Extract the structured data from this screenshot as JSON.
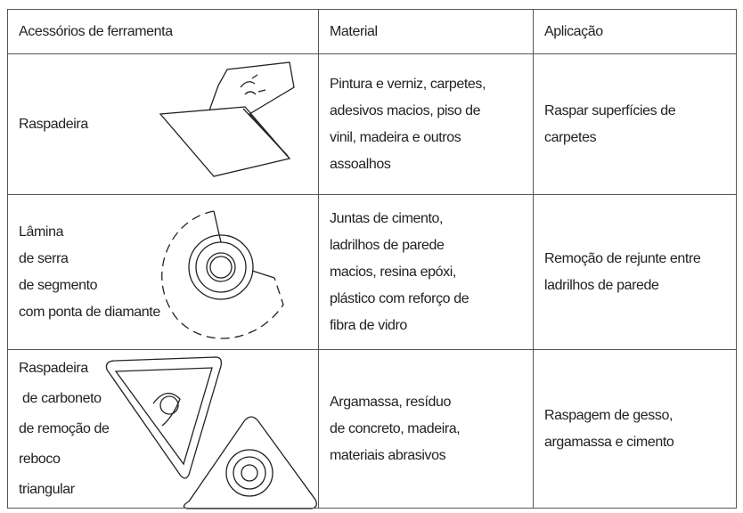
{
  "table": {
    "header": [
      "Acessórios de ferramenta",
      "Material",
      "Aplicação"
    ],
    "rows": [
      [
        [
          "Raspadeira"
        ],
        [
          "Pintura e verniz, carpetes,",
          "adesivos macios, piso de",
          "vinil, madeira e outros",
          "assoalhos"
        ],
        [
          "Raspar superfícies de",
          "carpetes"
        ]
      ],
      [
        [
          "Lâmina",
          "de serra",
          "de segmento",
          "com ponta de diamante"
        ],
        [
          "Juntas de cimento,",
          "ladrilhos de parede",
          "macios, resina epóxi,",
          "plástico com reforço de",
          "fibra de vidro"
        ],
        [
          "Remoção de rejunte entre",
          "ladrilhos de parede"
        ]
      ],
      [
        [
          "Raspadeira",
          " de carboneto",
          "de remoção de",
          "reboco",
          "triangular"
        ],
        [
          "Argamassa, resíduo",
          "de concreto, madeira,",
          "materiais abrasivos"
        ],
        [
          "Raspagem de gesso,",
          "argamassa e cimento"
        ]
      ]
    ]
  }
}
